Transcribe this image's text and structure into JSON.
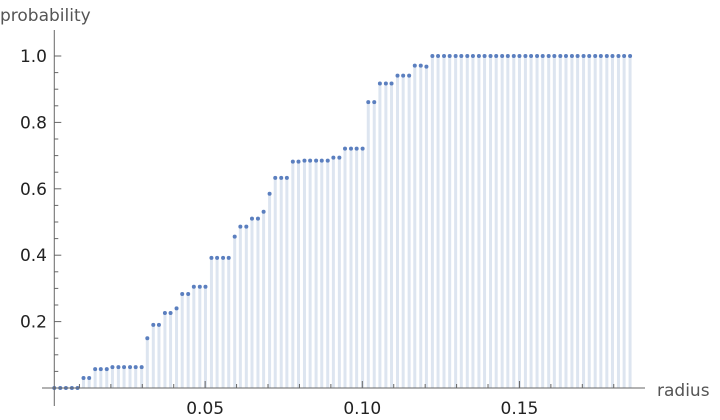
{
  "chart_data": {
    "type": "scatter",
    "style": "discrete-stem",
    "xlabel": "radius",
    "ylabel": "probability",
    "xlim": [
      0,
      0.19
    ],
    "ylim": [
      0,
      1.05
    ],
    "x_ticks": [
      {
        "value": 0.05,
        "label": "0.05"
      },
      {
        "value": 0.1,
        "label": "0.10"
      },
      {
        "value": 0.15,
        "label": "0.15"
      }
    ],
    "y_ticks": [
      {
        "value": 0.2,
        "label": "0.2"
      },
      {
        "value": 0.4,
        "label": "0.4"
      },
      {
        "value": 0.6,
        "label": "0.6"
      },
      {
        "value": 0.8,
        "label": "0.8"
      },
      {
        "value": 1.0,
        "label": "1.0"
      }
    ],
    "grid": false,
    "colors": {
      "point": "#5b7fbf",
      "stem": "#dde5f0",
      "axis": "#666666"
    },
    "x": [
      0.002,
      0.0039,
      0.0057,
      0.0076,
      0.0094,
      0.0113,
      0.0131,
      0.015,
      0.0168,
      0.0187,
      0.0205,
      0.0224,
      0.0242,
      0.0261,
      0.0279,
      0.0298,
      0.0316,
      0.0335,
      0.0353,
      0.0372,
      0.039,
      0.0409,
      0.0427,
      0.0446,
      0.0464,
      0.0483,
      0.0501,
      0.052,
      0.0538,
      0.0557,
      0.0575,
      0.0594,
      0.0612,
      0.0631,
      0.0649,
      0.0668,
      0.0686,
      0.0705,
      0.0723,
      0.0742,
      0.076,
      0.0779,
      0.0797,
      0.0816,
      0.0834,
      0.0853,
      0.0871,
      0.089,
      0.0908,
      0.0927,
      0.0945,
      0.0964,
      0.0982,
      0.1001,
      0.1019,
      0.1038,
      0.1056,
      0.1075,
      0.1093,
      0.1112,
      0.113,
      0.1149,
      0.1167,
      0.1186,
      0.1204,
      0.1223,
      0.1241,
      0.126,
      0.1278,
      0.1297,
      0.1315,
      0.1334,
      0.1352,
      0.1371,
      0.1389,
      0.1408,
      0.1426,
      0.1445,
      0.1463,
      0.1482,
      0.15,
      0.1519,
      0.1537,
      0.1556,
      0.1574,
      0.1593,
      0.1611,
      0.163,
      0.1648,
      0.1667,
      0.1685,
      0.1704,
      0.1722,
      0.1741,
      0.1759,
      0.1778,
      0.1796,
      0.1815,
      0.1833,
      0.1852
    ],
    "y": [
      0,
      0,
      0,
      0,
      0,
      0.03,
      0.03,
      0.057,
      0.057,
      0.057,
      0.063,
      0.063,
      0.063,
      0.063,
      0.063,
      0.063,
      0.15,
      0.19,
      0.19,
      0.226,
      0.226,
      0.24,
      0.283,
      0.283,
      0.305,
      0.305,
      0.305,
      0.392,
      0.392,
      0.392,
      0.392,
      0.456,
      0.486,
      0.486,
      0.51,
      0.51,
      0.531,
      0.585,
      0.633,
      0.633,
      0.633,
      0.682,
      0.682,
      0.685,
      0.685,
      0.685,
      0.685,
      0.685,
      0.694,
      0.694,
      0.721,
      0.721,
      0.721,
      0.721,
      0.861,
      0.861,
      0.917,
      0.917,
      0.917,
      0.941,
      0.941,
      0.941,
      0.971,
      0.971,
      0.968,
      1,
      1,
      1,
      1,
      1,
      1,
      1,
      1,
      1,
      1,
      1,
      1,
      1,
      1,
      1,
      1,
      1,
      1,
      1,
      1,
      1,
      1,
      1,
      1,
      1,
      1,
      1,
      1,
      1,
      1,
      1,
      1,
      1,
      1,
      1
    ]
  }
}
